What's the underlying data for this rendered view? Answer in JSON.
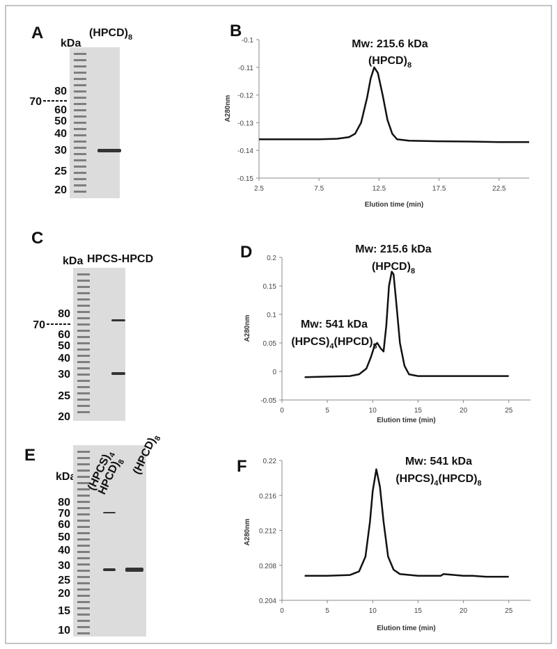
{
  "gels": [
    {
      "label": "A",
      "unit": "kDa",
      "lanes": [
        [
          "(HPCD)",
          "8"
        ]
      ],
      "markers": [
        "80",
        "70",
        "60",
        "50",
        "40",
        "30",
        "25",
        "20"
      ]
    },
    {
      "label": "C",
      "unit": "kDa",
      "lanes": [
        [
          "HPCS-HPCD"
        ]
      ],
      "markers": [
        "80",
        "70",
        "60",
        "50",
        "40",
        "30",
        "25",
        "20"
      ]
    },
    {
      "label": "E",
      "unit": "kDa",
      "lanes": [
        [
          "(HPCS)",
          "4"
        ],
        [
          "HPCD)",
          "8"
        ],
        [
          "(HPCD)",
          "8"
        ]
      ],
      "markers": [
        "80",
        "70",
        "60",
        "50",
        "40",
        "30",
        "25",
        "20",
        "15",
        "10"
      ]
    }
  ],
  "chart_data": [
    {
      "type": "line",
      "label": "B",
      "x_label": "Elution time (min)",
      "y_label": "A280nm",
      "annotations": [
        [
          "Mw: 215.6 kDa"
        ],
        [
          "(HPCD)",
          "8"
        ]
      ],
      "color": "#111111",
      "x": [
        2.5,
        5,
        7.5,
        9,
        10,
        10.5,
        11,
        11.5,
        11.8,
        12.1,
        12.4,
        12.8,
        13.2,
        13.6,
        14,
        15,
        17.5,
        20,
        22.5,
        25
      ],
      "values": [
        -0.136,
        -0.136,
        -0.136,
        -0.1358,
        -0.1352,
        -0.134,
        -0.13,
        -0.121,
        -0.114,
        -0.11,
        -0.112,
        -0.12,
        -0.129,
        -0.134,
        -0.136,
        -0.1365,
        -0.1367,
        -0.1368,
        -0.137,
        -0.137
      ],
      "xlim": [
        2.5,
        25
      ],
      "xticks": [
        2.5,
        7.5,
        12.5,
        17.5,
        22.5
      ],
      "ylim": [
        -0.15,
        -0.1
      ],
      "yticks": [
        -0.15,
        -0.14,
        -0.13,
        -0.12,
        -0.11,
        -0.1
      ]
    },
    {
      "type": "line",
      "label": "D",
      "x_label": "Elution time (min)",
      "y_label": "A280nm",
      "annotations": [
        [
          "Mw: 215.6 kDa"
        ],
        [
          "(HPCD)",
          "8"
        ],
        [
          "Mw: 541 kDa"
        ],
        [
          "(HPCS)",
          "4",
          "(HPCD)",
          "8"
        ]
      ],
      "color": "#111111",
      "x": [
        2.5,
        5,
        7.5,
        8.5,
        9.3,
        9.8,
        10.2,
        10.5,
        10.9,
        11.2,
        11.5,
        11.8,
        12.1,
        12.3,
        12.6,
        13,
        13.5,
        14,
        15,
        17.5,
        20,
        22.5,
        25
      ],
      "values": [
        -0.01,
        -0.009,
        -0.008,
        -0.005,
        0.005,
        0.025,
        0.045,
        0.05,
        0.04,
        0.035,
        0.08,
        0.15,
        0.175,
        0.17,
        0.12,
        0.05,
        0.01,
        -0.005,
        -0.008,
        -0.008,
        -0.008,
        -0.008,
        -0.008
      ],
      "xlim": [
        0,
        27.4
      ],
      "xticks": [
        0,
        5,
        10,
        15,
        20,
        25
      ],
      "ylim": [
        -0.05,
        0.2
      ],
      "yticks": [
        -0.05,
        0,
        0.05,
        0.1,
        0.15,
        0.2
      ]
    },
    {
      "type": "line",
      "label": "F",
      "x_label": "Elution time (min)",
      "y_label": "A280nm",
      "annotations": [
        [
          "Mw: 541 kDa"
        ],
        [
          "(HPCS)",
          "4",
          "(HPCD)",
          "8"
        ]
      ],
      "color": "#111111",
      "x": [
        2.5,
        5,
        7.5,
        8.5,
        9.2,
        9.7,
        10,
        10.4,
        10.8,
        11.2,
        11.7,
        12.3,
        13,
        15,
        17.5,
        17.8,
        20,
        21,
        22.5,
        25
      ],
      "values": [
        0.2068,
        0.2068,
        0.2069,
        0.2073,
        0.209,
        0.213,
        0.2165,
        0.219,
        0.217,
        0.213,
        0.209,
        0.2075,
        0.207,
        0.2068,
        0.2068,
        0.207,
        0.2068,
        0.2068,
        0.2067,
        0.2067
      ],
      "xlim": [
        0,
        27.4
      ],
      "xticks": [
        0,
        5,
        10,
        15,
        20,
        25
      ],
      "ylim": [
        0.204,
        0.22
      ],
      "yticks": [
        0.204,
        0.208,
        0.212,
        0.216,
        0.22
      ]
    }
  ]
}
